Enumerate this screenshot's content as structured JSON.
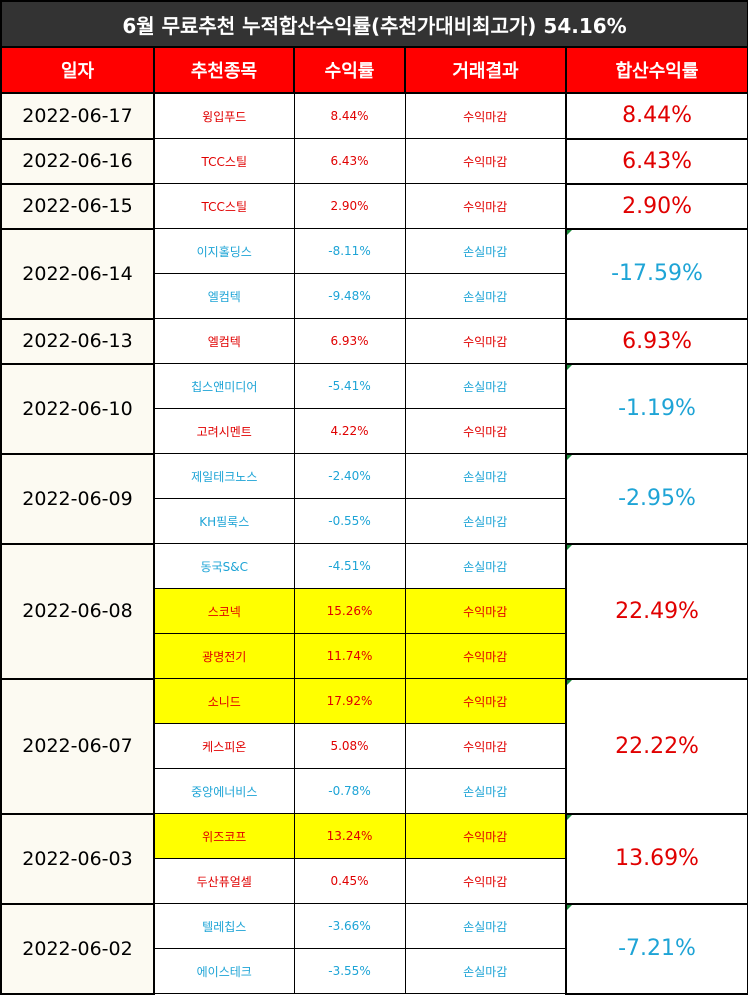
{
  "title": "6월 무료추천 누적합산수익률(추천가대비최고가) 54.16%",
  "headers": [
    "일자",
    "추천종목",
    "수익률",
    "거래결과",
    "합산수익률"
  ],
  "colors": {
    "positive": "#e00000",
    "negative": "#1ea4d6",
    "highlight": "#ffff00",
    "header": "#ff0000",
    "title_bg": "#333333"
  },
  "groups": [
    {
      "date": "2022-06-17",
      "total": "8.44%",
      "sign": "pos",
      "rows": [
        {
          "stock": "윙입푸드",
          "rate": "8.44%",
          "result": "수익마감",
          "sign": "pos",
          "hl": false
        }
      ]
    },
    {
      "date": "2022-06-16",
      "total": "6.43%",
      "sign": "pos",
      "rows": [
        {
          "stock": "TCC스틸",
          "rate": "6.43%",
          "result": "수익마감",
          "sign": "pos",
          "hl": false
        }
      ]
    },
    {
      "date": "2022-06-15",
      "total": "2.90%",
      "sign": "pos",
      "rows": [
        {
          "stock": "TCC스틸",
          "rate": "2.90%",
          "result": "수익마감",
          "sign": "pos",
          "hl": false
        }
      ]
    },
    {
      "date": "2022-06-14",
      "total": "-17.59%",
      "sign": "neg",
      "rows": [
        {
          "stock": "이지홀딩스",
          "rate": "-8.11%",
          "result": "손실마감",
          "sign": "neg",
          "hl": false
        },
        {
          "stock": "엘컴텍",
          "rate": "-9.48%",
          "result": "손실마감",
          "sign": "neg",
          "hl": false
        }
      ]
    },
    {
      "date": "2022-06-13",
      "total": "6.93%",
      "sign": "pos",
      "rows": [
        {
          "stock": "엘컴텍",
          "rate": "6.93%",
          "result": "수익마감",
          "sign": "pos",
          "hl": false
        }
      ]
    },
    {
      "date": "2022-06-10",
      "total": "-1.19%",
      "sign": "neg",
      "rows": [
        {
          "stock": "칩스앤미디어",
          "rate": "-5.41%",
          "result": "손실마감",
          "sign": "neg",
          "hl": false
        },
        {
          "stock": "고려시멘트",
          "rate": "4.22%",
          "result": "수익마감",
          "sign": "pos",
          "hl": false
        }
      ]
    },
    {
      "date": "2022-06-09",
      "total": "-2.95%",
      "sign": "neg",
      "rows": [
        {
          "stock": "제일테크노스",
          "rate": "-2.40%",
          "result": "손실마감",
          "sign": "neg",
          "hl": false
        },
        {
          "stock": "KH필룩스",
          "rate": "-0.55%",
          "result": "손실마감",
          "sign": "neg",
          "hl": false
        }
      ]
    },
    {
      "date": "2022-06-08",
      "total": "22.49%",
      "sign": "pos",
      "rows": [
        {
          "stock": "동국S&C",
          "rate": "-4.51%",
          "result": "손실마감",
          "sign": "neg",
          "hl": false
        },
        {
          "stock": "스코넥",
          "rate": "15.26%",
          "result": "수익마감",
          "sign": "pos",
          "hl": true
        },
        {
          "stock": "광명전기",
          "rate": "11.74%",
          "result": "수익마감",
          "sign": "pos",
          "hl": true
        }
      ]
    },
    {
      "date": "2022-06-07",
      "total": "22.22%",
      "sign": "pos",
      "rows": [
        {
          "stock": "소니드",
          "rate": "17.92%",
          "result": "수익마감",
          "sign": "pos",
          "hl": true
        },
        {
          "stock": "케스피온",
          "rate": "5.08%",
          "result": "수익마감",
          "sign": "pos",
          "hl": false
        },
        {
          "stock": "중앙에너비스",
          "rate": "-0.78%",
          "result": "손실마감",
          "sign": "neg",
          "hl": false
        }
      ]
    },
    {
      "date": "2022-06-03",
      "total": "13.69%",
      "sign": "pos",
      "rows": [
        {
          "stock": "위즈코프",
          "rate": "13.24%",
          "result": "수익마감",
          "sign": "pos",
          "hl": true
        },
        {
          "stock": "두산퓨얼셀",
          "rate": "0.45%",
          "result": "수익마감",
          "sign": "pos",
          "hl": false
        }
      ]
    },
    {
      "date": "2022-06-02",
      "total": "-7.21%",
      "sign": "neg",
      "rows": [
        {
          "stock": "텔레칩스",
          "rate": "-3.66%",
          "result": "손실마감",
          "sign": "neg",
          "hl": false
        },
        {
          "stock": "에이스테크",
          "rate": "-3.55%",
          "result": "손실마감",
          "sign": "neg",
          "hl": false
        }
      ]
    }
  ]
}
